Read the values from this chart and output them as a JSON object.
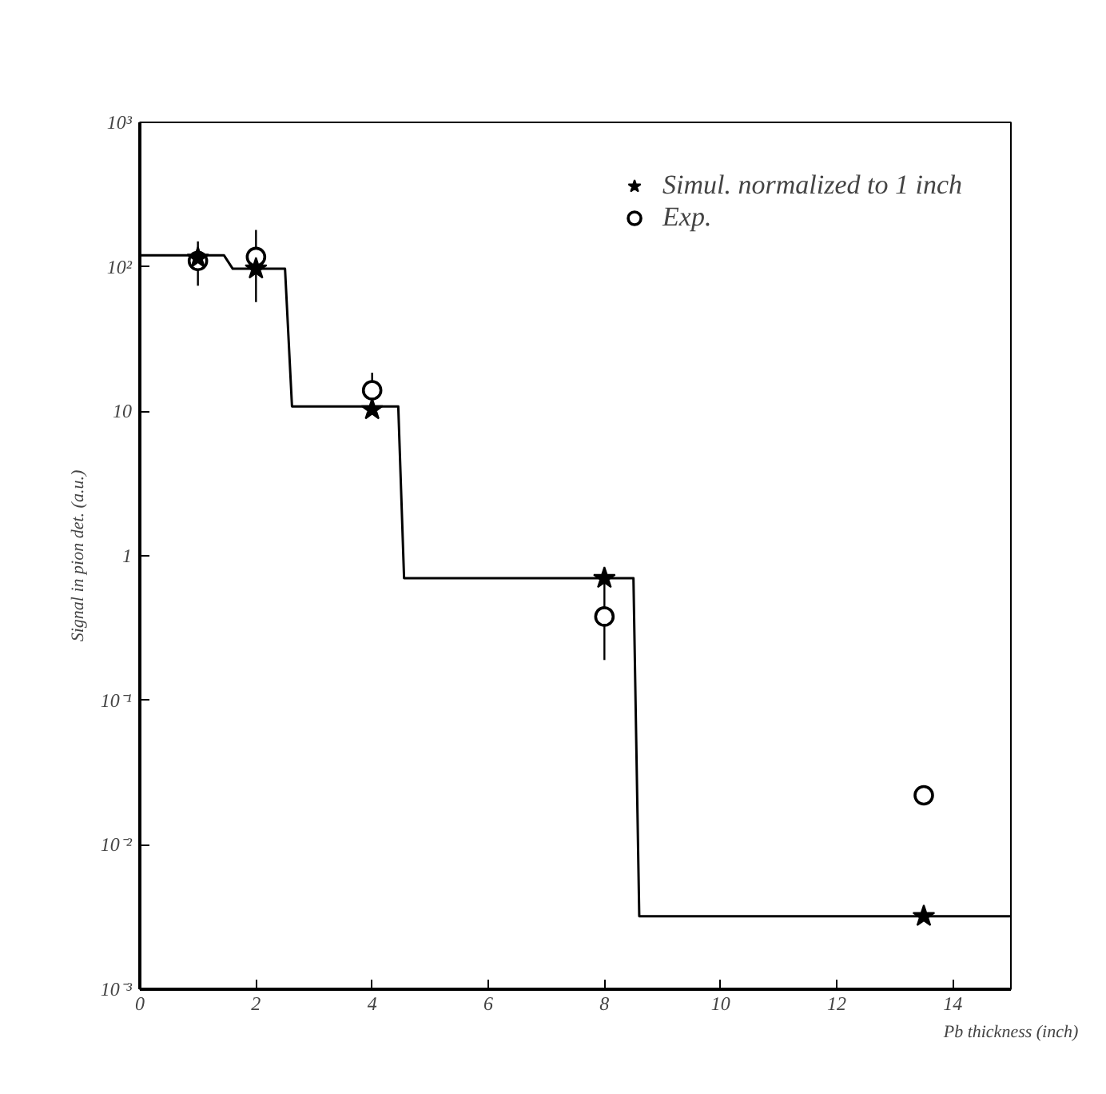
{
  "chart_data": {
    "type": "scatter",
    "xlabel": "Pb thickness (inch)",
    "ylabel": "Signal in pion det. (a.u.)",
    "log": "y",
    "xlim": [
      0,
      15
    ],
    "ylim": [
      0.001,
      1000
    ],
    "xticks": [
      0,
      2,
      4,
      6,
      8,
      10,
      12,
      14
    ],
    "yticks": [
      {
        "value": 0.001,
        "label": "10⁻³"
      },
      {
        "value": 0.01,
        "label": "10⁻²"
      },
      {
        "value": 0.1,
        "label": "10⁻¹"
      },
      1,
      10,
      {
        "value": 100,
        "label": "10²"
      },
      {
        "value": 1000,
        "label": "10³"
      }
    ],
    "grid": false,
    "legend": "top right",
    "series": [
      {
        "type": "line",
        "color": "#000000",
        "line_style": "solid",
        "marker": "none",
        "x": [
          0,
          1.45,
          1.6,
          2.5,
          2.62,
          4.45,
          4.55,
          8.5,
          8.6,
          15
        ],
        "values": [
          120,
          120,
          97,
          97,
          10.8,
          10.8,
          0.7,
          0.7,
          0.0032,
          0.0032
        ]
      },
      {
        "name": "Simul. normalized to 1 inch",
        "color": "#000000",
        "marker": "star",
        "x": [
          1,
          2,
          4,
          8,
          13.5
        ],
        "values": [
          115,
          97,
          10.3,
          0.7,
          0.0032
        ]
      },
      {
        "name": "Exp.",
        "color": "#000000",
        "marker": "circle",
        "x": [
          1,
          2,
          4,
          8,
          13.5
        ],
        "values": [
          110,
          117,
          14,
          0.38,
          0.022
        ],
        "errors": [
          [
            74,
            150
          ],
          [
            57,
            180
          ],
          [
            10,
            18.5
          ],
          [
            0.19,
            0.7
          ],
          null
        ]
      }
    ]
  }
}
